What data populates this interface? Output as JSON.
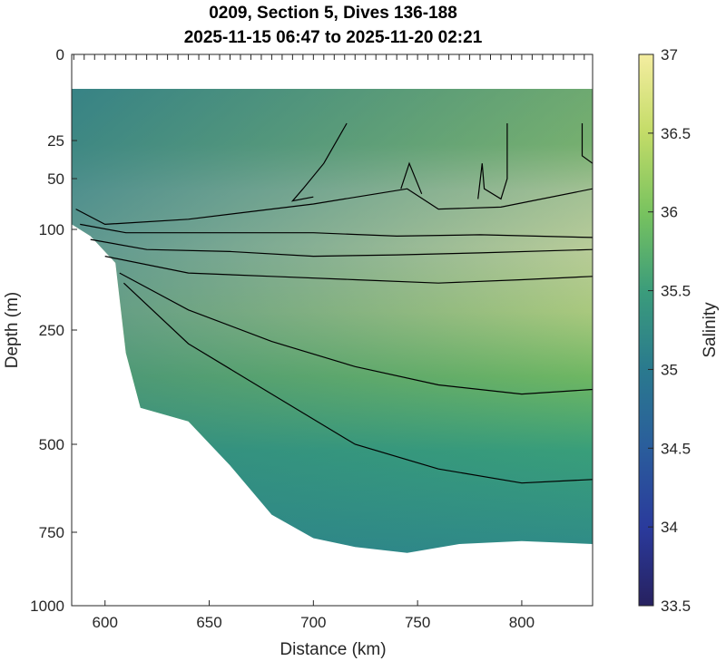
{
  "chart_data": {
    "type": "contour",
    "title": "0209, Section 5, Dives 136-188",
    "subtitle": "2025-11-15 06:47 to 2025-11-20 02:21",
    "xlabel": "Distance (km)",
    "ylabel": "Depth (m)",
    "colorbar_label": "Salinity",
    "xlim": [
      584,
      834
    ],
    "x_ticks": [
      600,
      650,
      700,
      750,
      800
    ],
    "y_ticks": [
      0,
      25,
      50,
      100,
      250,
      500,
      750,
      1000
    ],
    "y_scale": "nonlinear (compressed with depth)",
    "colorbar_range": [
      33.5,
      37
    ],
    "colorbar_ticks": [
      "37",
      "36.5",
      "36",
      "35.5",
      "35",
      "34.5",
      "34",
      "33.5"
    ],
    "dive_markers_at_surface": true,
    "colors": {
      "high": "#f4eda0",
      "mid": "#9fd05a",
      "low": "#2a7a8e",
      "min": "#27215f",
      "contour": "#000000"
    },
    "data_coverage_depth_top_m": 10,
    "bottom_boundary": [
      {
        "x": 584,
        "depth": 95
      },
      {
        "x": 593,
        "depth": 110
      },
      {
        "x": 605,
        "depth": 150
      },
      {
        "x": 610,
        "depth": 300
      },
      {
        "x": 617,
        "depth": 420
      },
      {
        "x": 640,
        "depth": 450
      },
      {
        "x": 660,
        "depth": 560
      },
      {
        "x": 680,
        "depth": 700
      },
      {
        "x": 700,
        "depth": 770
      },
      {
        "x": 720,
        "depth": 800
      },
      {
        "x": 745,
        "depth": 820
      },
      {
        "x": 770,
        "depth": 790
      },
      {
        "x": 800,
        "depth": 780
      },
      {
        "x": 834,
        "depth": 790
      }
    ],
    "contour_lines_depth_m": [
      {
        "name": "c1",
        "points": [
          [
            586,
            80
          ],
          [
            600,
            95
          ],
          [
            640,
            90
          ],
          [
            700,
            75
          ],
          [
            730,
            65
          ],
          [
            745,
            60
          ],
          [
            760,
            80
          ],
          [
            790,
            78
          ],
          [
            834,
            60
          ]
        ]
      },
      {
        "name": "c2",
        "points": [
          [
            588,
            95
          ],
          [
            610,
            105
          ],
          [
            650,
            105
          ],
          [
            700,
            105
          ],
          [
            740,
            110
          ],
          [
            780,
            108
          ],
          [
            834,
            112
          ]
        ]
      },
      {
        "name": "c3",
        "points": [
          [
            593,
            115
          ],
          [
            620,
            130
          ],
          [
            660,
            133
          ],
          [
            700,
            140
          ],
          [
            740,
            138
          ],
          [
            780,
            135
          ],
          [
            834,
            130
          ]
        ]
      },
      {
        "name": "c4",
        "points": [
          [
            600,
            140
          ],
          [
            640,
            165
          ],
          [
            680,
            170
          ],
          [
            720,
            175
          ],
          [
            760,
            180
          ],
          [
            800,
            175
          ],
          [
            834,
            170
          ]
        ]
      },
      {
        "name": "c5",
        "points": [
          [
            607,
            165
          ],
          [
            640,
            220
          ],
          [
            680,
            275
          ],
          [
            720,
            330
          ],
          [
            760,
            370
          ],
          [
            800,
            390
          ],
          [
            834,
            380
          ]
        ]
      },
      {
        "name": "c6",
        "points": [
          [
            609,
            180
          ],
          [
            640,
            280
          ],
          [
            680,
            390
          ],
          [
            720,
            500
          ],
          [
            760,
            570
          ],
          [
            800,
            610
          ],
          [
            834,
            600
          ]
        ]
      },
      {
        "name": "c7",
        "points": [
          [
            716,
            20
          ],
          [
            705,
            40
          ],
          [
            695,
            60
          ],
          [
            690,
            72
          ],
          [
            700,
            68
          ]
        ]
      },
      {
        "name": "c8",
        "points": [
          [
            742,
            60
          ],
          [
            746,
            40
          ],
          [
            752,
            65
          ]
        ]
      },
      {
        "name": "c9",
        "points": [
          [
            793,
            20
          ],
          [
            793,
            50
          ],
          [
            790,
            70
          ],
          [
            782,
            60
          ],
          [
            781,
            40
          ],
          [
            779,
            70
          ]
        ]
      },
      {
        "name": "c10",
        "points": [
          [
            829,
            20
          ],
          [
            829,
            35
          ],
          [
            834,
            40
          ]
        ]
      }
    ]
  }
}
